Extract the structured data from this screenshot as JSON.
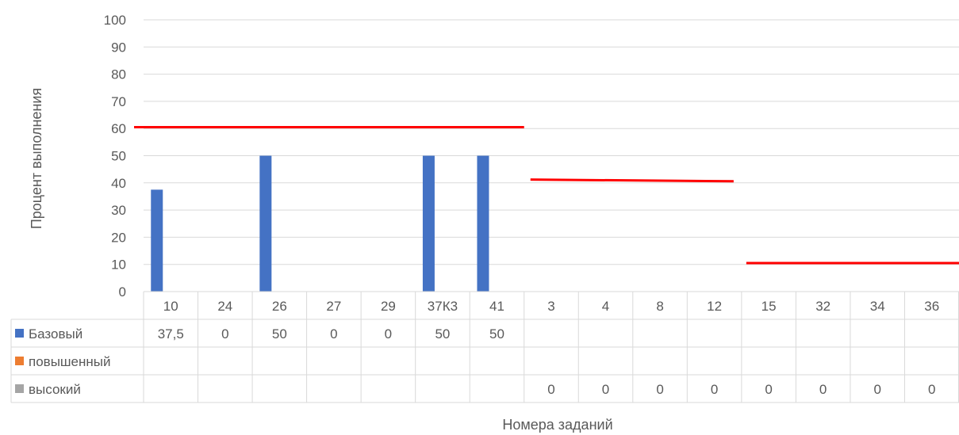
{
  "chart_data": {
    "type": "bar",
    "title": "",
    "xlabel": "Номера заданий",
    "ylabel": "Процент выполнения",
    "ylim": [
      0,
      100
    ],
    "y_ticks": [
      "0",
      "10",
      "20",
      "30",
      "40",
      "50",
      "60",
      "70",
      "80",
      "90",
      "100"
    ],
    "grid": true,
    "legend": "data-table-left",
    "categories": [
      "10",
      "24",
      "26",
      "27",
      "29",
      "37К3",
      "41",
      "3",
      "4",
      "8",
      "12",
      "15",
      "32",
      "34",
      "36"
    ],
    "series": [
      {
        "name": "Базовый",
        "color": "#4472C4",
        "values": [
          37.5,
          0,
          50,
          0,
          0,
          50,
          50,
          null,
          null,
          null,
          null,
          null,
          null,
          null,
          null
        ],
        "labels": [
          "37,5",
          "0",
          "50",
          "0",
          "0",
          "50",
          "50",
          "",
          "",
          "",
          "",
          "",
          "",
          "",
          ""
        ]
      },
      {
        "name": "повышенный",
        "color": "#ED7D31",
        "values": [
          null,
          null,
          null,
          null,
          null,
          null,
          null,
          null,
          null,
          null,
          null,
          null,
          null,
          null,
          null
        ],
        "labels": [
          "",
          "",
          "",
          "",
          "",
          "",
          "",
          "",
          "",
          "",
          "",
          "",
          "",
          "",
          ""
        ]
      },
      {
        "name": "высокий",
        "color": "#A5A5A5",
        "values": [
          null,
          null,
          null,
          null,
          null,
          null,
          null,
          0,
          0,
          0,
          0,
          0,
          0,
          0,
          0
        ],
        "labels": [
          "",
          "",
          "",
          "",
          "",
          "",
          "",
          "0",
          "0",
          "0",
          "0",
          "0",
          "0",
          "0",
          "0"
        ]
      }
    ],
    "threshold_lines": [
      {
        "color": "#FF0000",
        "from_category": 0,
        "to_category": 6,
        "y_start": 60.5,
        "y_end": 60.5
      },
      {
        "color": "#FF0000",
        "from_category": 7,
        "to_category": 10,
        "y_start": 41.2,
        "y_end": 40.6
      },
      {
        "color": "#FF0000",
        "from_category": 11,
        "to_category": 14,
        "y_start": 10.5,
        "y_end": 10.5
      }
    ]
  }
}
